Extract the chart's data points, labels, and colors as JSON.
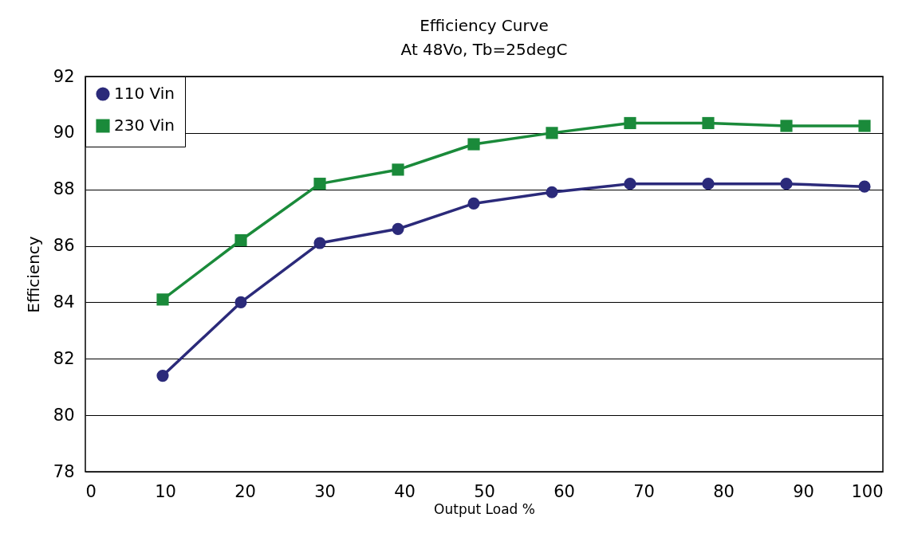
{
  "chart_data": {
    "type": "line",
    "title": "Efficiency Curve",
    "subtitle": "At 48Vo, Tb=25degC",
    "xlabel": "Output Load %",
    "ylabel": "Efficiency",
    "series": [
      {
        "name": "110 Vin",
        "color": "#2b2a7a",
        "marker": "circle",
        "x": [
          9.7,
          19.5,
          29.4,
          39.2,
          48.7,
          58.5,
          68.3,
          78.1,
          87.9,
          97.7
        ],
        "values": [
          81.4,
          84.0,
          86.1,
          86.6,
          87.5,
          87.9,
          88.2,
          88.2,
          88.2,
          88.1
        ]
      },
      {
        "name": "230 Vin",
        "color": "#1a8a3a",
        "marker": "square",
        "x": [
          9.7,
          19.5,
          29.4,
          39.2,
          48.7,
          58.5,
          68.3,
          78.1,
          87.9,
          97.7
        ],
        "values": [
          84.1,
          86.2,
          88.2,
          88.7,
          89.6,
          90.0,
          90.35,
          90.35,
          90.25,
          90.25
        ]
      }
    ],
    "xlim": [
      0,
      100
    ],
    "xticks": [
      0,
      10,
      20,
      30,
      40,
      50,
      60,
      70,
      80,
      90,
      100
    ],
    "ylim": [
      78,
      92
    ],
    "yticks": [
      78,
      80,
      82,
      84,
      86,
      88,
      90,
      92
    ],
    "grid": "y",
    "legend": "top left",
    "line_style": "solid"
  }
}
